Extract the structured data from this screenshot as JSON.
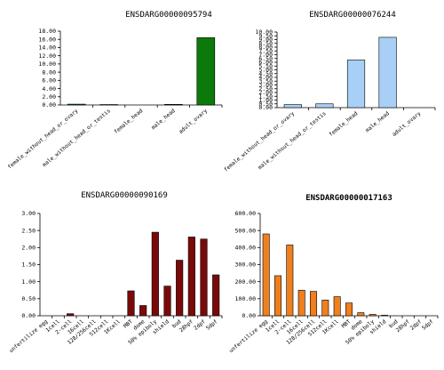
{
  "chart_data": [
    {
      "type": "bar",
      "title": "ENSDARG00000095794",
      "title_bold": false,
      "categories": [
        "female_without_head_or_ovary",
        "male_without_head_or_testis",
        "female_head",
        "male_head",
        "adult_ovary"
      ],
      "values": [
        0.2,
        0.1,
        0.0,
        0.15,
        16.4
      ],
      "ylim": [
        0,
        18
      ],
      "yticks": [
        0,
        2,
        4,
        6,
        8,
        10,
        12,
        14,
        16,
        18
      ],
      "tick_decimals": 2,
      "color": "#0b7a0b",
      "stroke": "#000000"
    },
    {
      "type": "bar",
      "title": "ENSDARG00000076244",
      "title_bold": false,
      "categories": [
        "female_without_head_or_ovary",
        "male_without_head_or_testis",
        "female_head",
        "male_head",
        "adult_ovary"
      ],
      "values": [
        0.4,
        0.5,
        6.3,
        9.3,
        0.0
      ],
      "ylim": [
        0,
        10
      ],
      "yticks": [
        0,
        0.5,
        1,
        1.5,
        2,
        2.5,
        3,
        3.5,
        4,
        4.5,
        5,
        5.5,
        6,
        6.5,
        7,
        7.5,
        8,
        8.5,
        9,
        9.5,
        10
      ],
      "tick_decimals": 2,
      "color": "#a8cff5",
      "stroke": "#000000"
    },
    {
      "type": "bar",
      "title": "ENSDARG00000090169",
      "title_bold": false,
      "categories": [
        "unfertilize egg",
        "1cell",
        "2-cell",
        "16cell",
        "128/256cell",
        "512cell",
        "1Kcell",
        "MBT",
        "dome",
        "50% epiboly",
        "shield",
        "bud",
        "28hpf",
        "2dpf",
        "5dpf"
      ],
      "values": [
        0.0,
        0.0,
        0.06,
        0.0,
        0.0,
        0.0,
        0.0,
        0.73,
        0.3,
        2.45,
        0.87,
        1.63,
        2.31,
        2.25,
        1.2
      ],
      "ylim": [
        0,
        3
      ],
      "yticks": [
        0,
        0.5,
        1,
        1.5,
        2,
        2.5,
        3
      ],
      "tick_decimals": 2,
      "color": "#7a0a0a",
      "stroke": "#000000"
    },
    {
      "type": "bar",
      "title": "ENSDARG00000017163",
      "title_bold": true,
      "categories": [
        "unfertilize egg",
        "1cell",
        "2-cell",
        "16cell",
        "128/256cell",
        "512cell",
        "1Kcell",
        "MBT",
        "dome",
        "50% epiboly",
        "shield",
        "bud",
        "28hpf",
        "2dpf",
        "5dpf"
      ],
      "values": [
        480,
        235,
        415,
        150,
        143,
        92,
        112,
        75,
        18,
        8,
        3,
        0,
        0,
        0,
        0
      ],
      "ylim": [
        0,
        600
      ],
      "yticks": [
        0,
        100,
        200,
        300,
        400,
        500,
        600
      ],
      "tick_decimals": 2,
      "color": "#f07f1e",
      "stroke": "#000000"
    }
  ]
}
